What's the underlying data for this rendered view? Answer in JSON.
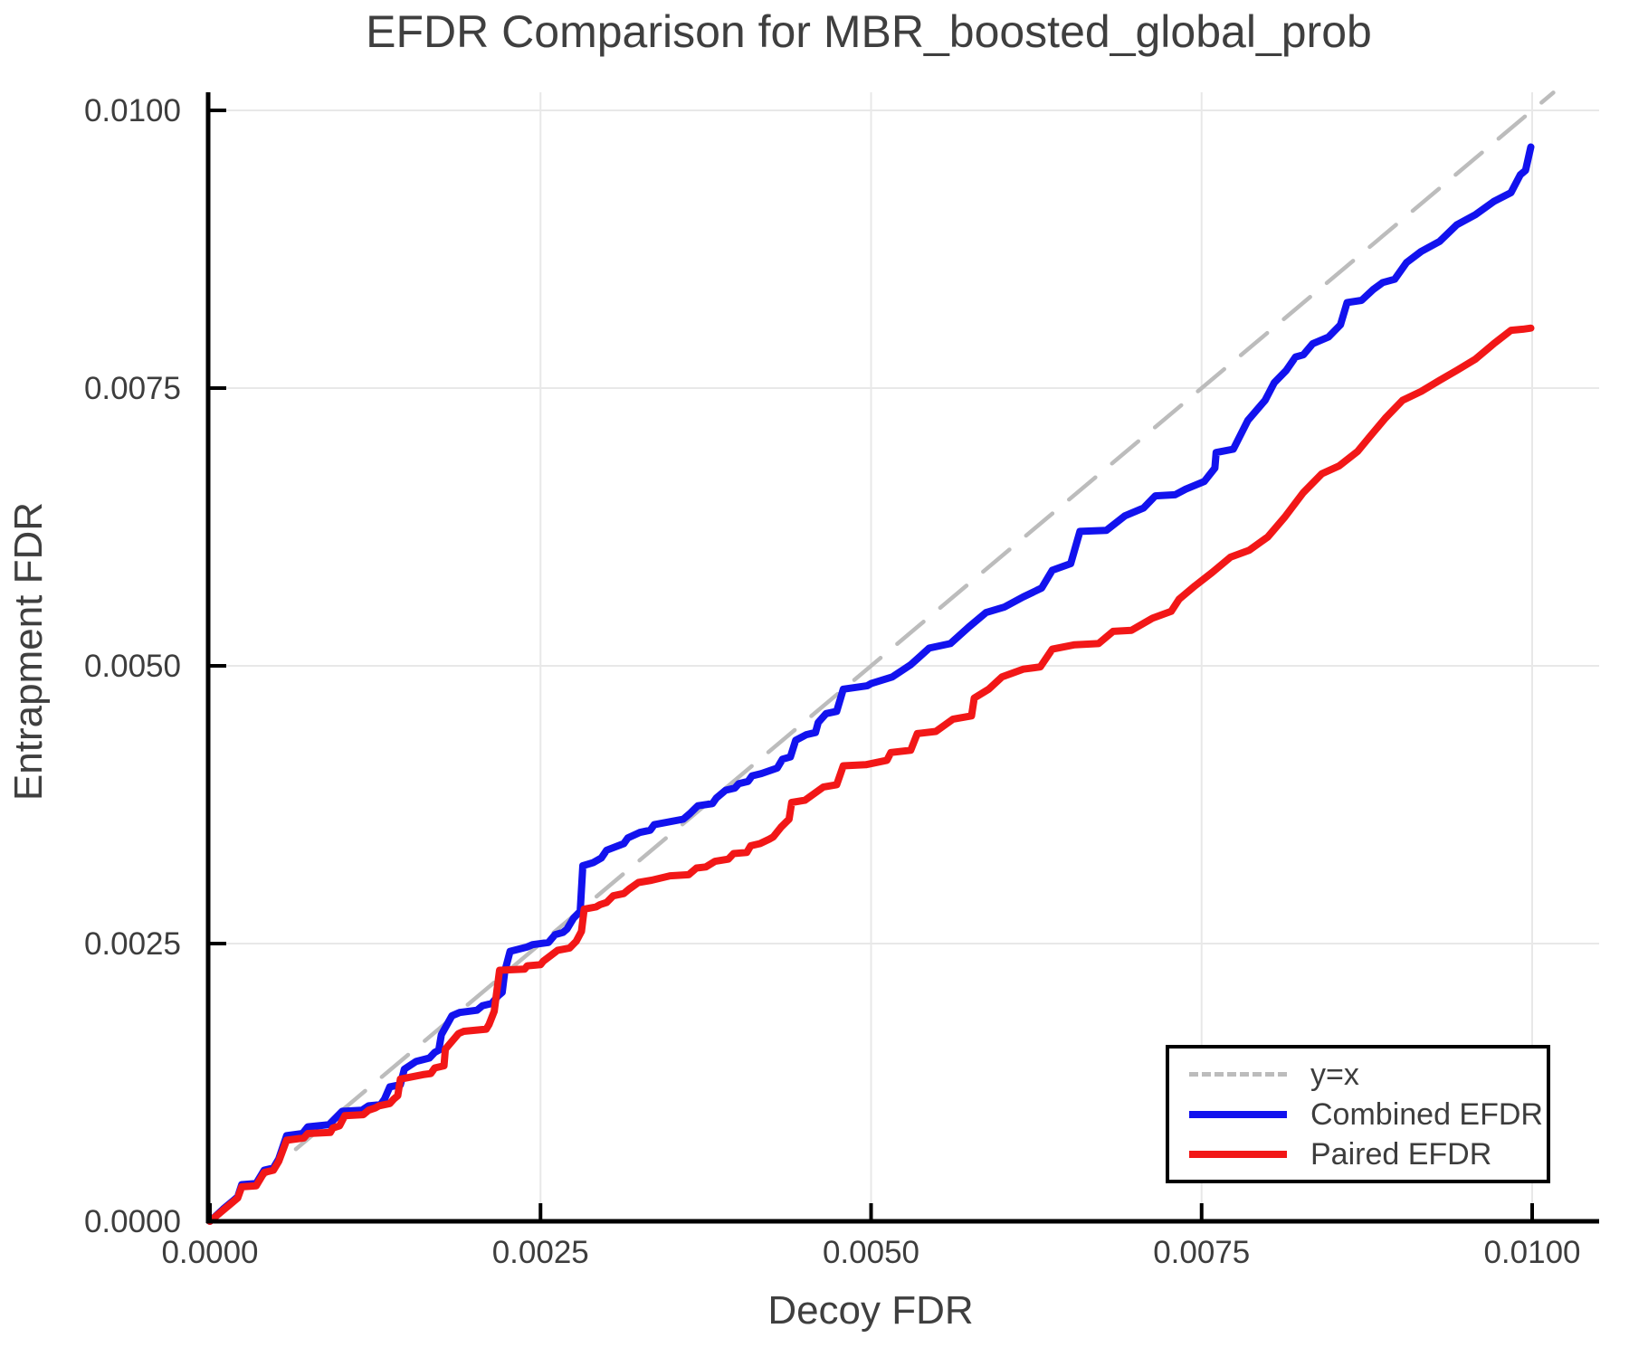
{
  "figure": {
    "background": "#ffffff",
    "text_color": "#3f3f3f",
    "spine_color": "#000000",
    "grid_color": "#e8e8e8"
  },
  "chart_data": {
    "type": "line",
    "title": "EFDR Comparison for MBR_boosted_global_prob",
    "xlabel": "Decoy FDR",
    "ylabel": "Entrapment FDR",
    "xlim": [
      0.0,
      0.0105
    ],
    "ylim": [
      0.0,
      0.0102
    ],
    "grid": true,
    "legend_position": "lower right",
    "unit_scale": 0.0001,
    "xticks": {
      "values": [
        0.0,
        0.0025,
        0.005,
        0.0075,
        0.01
      ],
      "labels": [
        "0.0000",
        "0.0025",
        "0.0050",
        "0.0075",
        "0.0100"
      ]
    },
    "yticks": {
      "values": [
        0.0,
        0.0025,
        0.005,
        0.0075,
        0.01
      ],
      "labels": [
        "0.0000",
        "0.0025",
        "0.0050",
        "0.0075",
        "0.0100"
      ]
    },
    "series": [
      {
        "name": "y=x",
        "style": "dashed",
        "color": "#bcbcbc",
        "width": 4.5,
        "points": [
          [
            0,
            0
          ],
          [
            101.6,
            101.6
          ]
        ]
      },
      {
        "name": "Combined EFDR",
        "style": "solid",
        "color": "#1212ee",
        "width": 8,
        "points": [
          [
            0,
            0
          ],
          [
            1.0,
            1.1
          ],
          [
            2.1,
            2.2
          ],
          [
            2.4,
            3.3
          ],
          [
            3.5,
            3.4
          ],
          [
            4.1,
            4.6
          ],
          [
            4.8,
            4.8
          ],
          [
            5.2,
            5.6
          ],
          [
            5.8,
            7.7
          ],
          [
            7.0,
            7.9
          ],
          [
            7.4,
            8.5
          ],
          [
            9.0,
            8.7
          ],
          [
            9.5,
            9.3
          ],
          [
            10.0,
            9.9
          ],
          [
            11.5,
            10.0
          ],
          [
            12.0,
            10.4
          ],
          [
            12.9,
            10.5
          ],
          [
            13.2,
            11.0
          ],
          [
            13.6,
            12.1
          ],
          [
            14.4,
            12.3
          ],
          [
            14.7,
            13.7
          ],
          [
            15.6,
            14.4
          ],
          [
            16.6,
            14.7
          ],
          [
            17.0,
            15.2
          ],
          [
            17.3,
            15.4
          ],
          [
            17.5,
            16.8
          ],
          [
            18.3,
            18.5
          ],
          [
            18.9,
            18.8
          ],
          [
            20.2,
            19.0
          ],
          [
            20.6,
            19.4
          ],
          [
            21.3,
            19.6
          ],
          [
            21.8,
            20.3
          ],
          [
            22.1,
            20.6
          ],
          [
            22.3,
            22.5
          ],
          [
            22.7,
            24.3
          ],
          [
            24.0,
            24.7
          ],
          [
            24.4,
            24.9
          ],
          [
            25.6,
            25.1
          ],
          [
            26.1,
            25.8
          ],
          [
            26.7,
            26.0
          ],
          [
            27.0,
            26.3
          ],
          [
            27.5,
            27.3
          ],
          [
            28.0,
            27.9
          ],
          [
            28.2,
            32.0
          ],
          [
            29.0,
            32.3
          ],
          [
            29.6,
            32.7
          ],
          [
            30.0,
            33.4
          ],
          [
            31.3,
            34.0
          ],
          [
            31.6,
            34.5
          ],
          [
            32.5,
            35.0
          ],
          [
            33.3,
            35.2
          ],
          [
            33.6,
            35.7
          ],
          [
            35.8,
            36.2
          ],
          [
            36.3,
            36.7
          ],
          [
            36.9,
            37.4
          ],
          [
            38.0,
            37.6
          ],
          [
            38.3,
            38.1
          ],
          [
            39.0,
            38.8
          ],
          [
            39.7,
            39.0
          ],
          [
            40.0,
            39.4
          ],
          [
            40.7,
            39.6
          ],
          [
            41.0,
            40.1
          ],
          [
            41.7,
            40.3
          ],
          [
            42.9,
            40.8
          ],
          [
            43.3,
            41.6
          ],
          [
            43.9,
            41.8
          ],
          [
            44.3,
            43.3
          ],
          [
            45.1,
            43.8
          ],
          [
            45.8,
            44.0
          ],
          [
            46.0,
            44.9
          ],
          [
            46.6,
            45.7
          ],
          [
            47.4,
            45.9
          ],
          [
            47.9,
            47.9
          ],
          [
            49.7,
            48.2
          ],
          [
            50.0,
            48.4
          ],
          [
            51.6,
            49.0
          ],
          [
            53.0,
            50.1
          ],
          [
            54.4,
            51.6
          ],
          [
            56.0,
            52.0
          ],
          [
            57.4,
            53.5
          ],
          [
            58.7,
            54.8
          ],
          [
            60.1,
            55.3
          ],
          [
            61.5,
            56.2
          ],
          [
            62.9,
            57.0
          ],
          [
            63.7,
            58.6
          ],
          [
            65.1,
            59.2
          ],
          [
            65.8,
            62.1
          ],
          [
            67.8,
            62.2
          ],
          [
            69.2,
            63.5
          ],
          [
            70.6,
            64.2
          ],
          [
            71.5,
            65.3
          ],
          [
            73.0,
            65.4
          ],
          [
            73.8,
            65.9
          ],
          [
            75.2,
            66.6
          ],
          [
            76.0,
            67.8
          ],
          [
            76.1,
            69.2
          ],
          [
            77.4,
            69.5
          ],
          [
            78.5,
            72.1
          ],
          [
            79.8,
            73.9
          ],
          [
            80.5,
            75.5
          ],
          [
            81.4,
            76.6
          ],
          [
            82.1,
            77.8
          ],
          [
            82.7,
            78.0
          ],
          [
            83.4,
            79.0
          ],
          [
            84.6,
            79.6
          ],
          [
            85.5,
            80.7
          ],
          [
            86.0,
            82.7
          ],
          [
            87.1,
            82.9
          ],
          [
            88.0,
            83.9
          ],
          [
            88.7,
            84.5
          ],
          [
            89.6,
            84.8
          ],
          [
            90.5,
            86.3
          ],
          [
            91.6,
            87.3
          ],
          [
            93.0,
            88.2
          ],
          [
            94.3,
            89.7
          ],
          [
            95.7,
            90.6
          ],
          [
            97.1,
            91.8
          ],
          [
            98.4,
            92.6
          ],
          [
            99.1,
            94.2
          ],
          [
            99.5,
            94.6
          ],
          [
            99.9,
            96.7
          ]
        ]
      },
      {
        "name": "Paired EFDR",
        "style": "solid",
        "color": "#f21717",
        "width": 8,
        "points": [
          [
            0,
            0
          ],
          [
            1.0,
            1.0
          ],
          [
            2.1,
            2.1
          ],
          [
            2.4,
            3.1
          ],
          [
            3.5,
            3.2
          ],
          [
            4.1,
            4.4
          ],
          [
            4.8,
            4.6
          ],
          [
            5.2,
            5.4
          ],
          [
            5.8,
            7.3
          ],
          [
            7.1,
            7.5
          ],
          [
            7.4,
            7.9
          ],
          [
            9.1,
            8.0
          ],
          [
            9.3,
            8.4
          ],
          [
            9.8,
            8.6
          ],
          [
            10.2,
            9.5
          ],
          [
            11.6,
            9.6
          ],
          [
            12.0,
            10.0
          ],
          [
            12.5,
            10.2
          ],
          [
            12.8,
            10.4
          ],
          [
            13.6,
            10.6
          ],
          [
            13.9,
            11.0
          ],
          [
            14.2,
            11.3
          ],
          [
            14.4,
            12.8
          ],
          [
            16.1,
            13.2
          ],
          [
            16.7,
            13.3
          ],
          [
            17.0,
            13.8
          ],
          [
            17.7,
            14.0
          ],
          [
            17.8,
            15.5
          ],
          [
            18.8,
            16.9
          ],
          [
            19.2,
            17.1
          ],
          [
            20.9,
            17.3
          ],
          [
            21.1,
            17.7
          ],
          [
            21.5,
            18.9
          ],
          [
            21.9,
            22.6
          ],
          [
            23.8,
            22.7
          ],
          [
            24.0,
            23.0
          ],
          [
            25.0,
            23.1
          ],
          [
            25.2,
            23.4
          ],
          [
            26.3,
            24.4
          ],
          [
            27.2,
            24.6
          ],
          [
            27.7,
            25.2
          ],
          [
            28.1,
            26.1
          ],
          [
            28.3,
            28.1
          ],
          [
            29.2,
            28.3
          ],
          [
            29.5,
            28.5
          ],
          [
            30.0,
            28.7
          ],
          [
            30.5,
            29.3
          ],
          [
            31.3,
            29.5
          ],
          [
            31.7,
            29.9
          ],
          [
            32.4,
            30.5
          ],
          [
            33.4,
            30.7
          ],
          [
            34.8,
            31.1
          ],
          [
            36.2,
            31.2
          ],
          [
            36.8,
            31.8
          ],
          [
            37.5,
            31.9
          ],
          [
            38.2,
            32.4
          ],
          [
            39.2,
            32.6
          ],
          [
            39.6,
            33.1
          ],
          [
            40.6,
            33.2
          ],
          [
            40.9,
            33.8
          ],
          [
            41.6,
            34.0
          ],
          [
            42.3,
            34.4
          ],
          [
            42.6,
            34.6
          ],
          [
            43.2,
            35.5
          ],
          [
            43.8,
            36.2
          ],
          [
            44.0,
            37.7
          ],
          [
            45.0,
            37.9
          ],
          [
            46.4,
            39.1
          ],
          [
            47.4,
            39.3
          ],
          [
            47.9,
            41.0
          ],
          [
            49.6,
            41.1
          ],
          [
            51.2,
            41.5
          ],
          [
            51.5,
            42.2
          ],
          [
            53.0,
            42.4
          ],
          [
            53.5,
            43.9
          ],
          [
            54.9,
            44.1
          ],
          [
            56.2,
            45.2
          ],
          [
            57.6,
            45.5
          ],
          [
            57.8,
            47.1
          ],
          [
            58.9,
            47.9
          ],
          [
            59.9,
            49.0
          ],
          [
            61.5,
            49.7
          ],
          [
            62.8,
            49.9
          ],
          [
            63.7,
            51.5
          ],
          [
            65.4,
            51.9
          ],
          [
            67.2,
            52.0
          ],
          [
            68.3,
            53.1
          ],
          [
            69.7,
            53.2
          ],
          [
            71.3,
            54.3
          ],
          [
            72.7,
            54.9
          ],
          [
            73.3,
            56.0
          ],
          [
            74.5,
            57.2
          ],
          [
            75.8,
            58.4
          ],
          [
            77.2,
            59.8
          ],
          [
            78.6,
            60.4
          ],
          [
            80.0,
            61.6
          ],
          [
            81.3,
            63.4
          ],
          [
            82.7,
            65.6
          ],
          [
            84.1,
            67.3
          ],
          [
            85.4,
            68.0
          ],
          [
            86.8,
            69.3
          ],
          [
            87.7,
            70.6
          ],
          [
            88.9,
            72.3
          ],
          [
            90.2,
            73.9
          ],
          [
            91.6,
            74.7
          ],
          [
            93.0,
            75.7
          ],
          [
            94.3,
            76.6
          ],
          [
            95.7,
            77.6
          ],
          [
            97.1,
            79.0
          ],
          [
            98.4,
            80.2
          ],
          [
            99.3,
            80.3
          ],
          [
            99.9,
            80.4
          ]
        ]
      }
    ],
    "legend": [
      {
        "label": "y=x",
        "color": "#bcbcbc",
        "style": "dashed"
      },
      {
        "label": "Combined EFDR",
        "color": "#1212ee",
        "style": "solid"
      },
      {
        "label": "Paired EFDR",
        "color": "#f21717",
        "style": "solid"
      }
    ]
  }
}
